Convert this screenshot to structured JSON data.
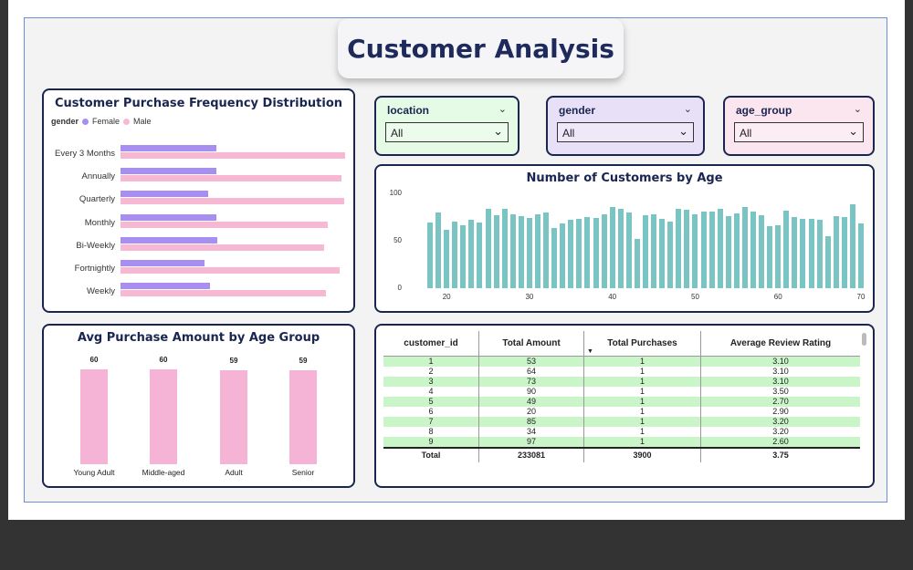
{
  "title": "Customer Analysis",
  "freq_chart": {
    "title": "Customer Purchase Frequency Distribution",
    "legend_title": "gender",
    "legend": [
      {
        "name": "Female",
        "color": "#a88ef0"
      },
      {
        "name": "Male",
        "color": "#f7b8d4"
      }
    ]
  },
  "slicers": [
    {
      "label": "location",
      "value": "All",
      "bg": "#e6fbe6"
    },
    {
      "label": "gender",
      "value": "All",
      "bg": "#e8e0f7"
    },
    {
      "label": "age_group",
      "value": "All",
      "bg": "#fbe6ef"
    }
  ],
  "age_chart": {
    "title": "Number of Customers by Age"
  },
  "avg_chart": {
    "title": "Avg Purchase Amount by Age Group"
  },
  "table": {
    "headers": [
      "customer_id",
      "Total Amount",
      "Total Purchases",
      "Average Review Rating"
    ],
    "rows": [
      [
        "1",
        "53",
        "1",
        "3.10"
      ],
      [
        "2",
        "64",
        "1",
        "3.10"
      ],
      [
        "3",
        "73",
        "1",
        "3.10"
      ],
      [
        "4",
        "90",
        "1",
        "3.50"
      ],
      [
        "5",
        "49",
        "1",
        "2.70"
      ],
      [
        "6",
        "20",
        "1",
        "2.90"
      ],
      [
        "7",
        "85",
        "1",
        "3.20"
      ],
      [
        "8",
        "34",
        "1",
        "3.20"
      ],
      [
        "9",
        "97",
        "1",
        "2.60"
      ]
    ],
    "total": [
      "Total",
      "233081",
      "3900",
      "3.75"
    ]
  },
  "chart_data": [
    {
      "type": "bar",
      "title": "Customer Purchase Frequency Distribution",
      "categories": [
        "Every 3 Months",
        "Annually",
        "Quarterly",
        "Monthly",
        "Bi-Weekly",
        "Fortnightly",
        "Weekly"
      ],
      "series": [
        {
          "name": "Female",
          "values": [
            295,
            295,
            268,
            295,
            297,
            257,
            273
          ]
        },
        {
          "name": "Male",
          "values": [
            689,
            677,
            686,
            636,
            624,
            673,
            630
          ]
        }
      ],
      "xlim": [
        0,
        700
      ]
    },
    {
      "type": "bar",
      "title": "Number of Customers by Age",
      "x": [
        18,
        19,
        20,
        21,
        22,
        23,
        24,
        25,
        26,
        27,
        28,
        29,
        30,
        31,
        32,
        33,
        34,
        35,
        36,
        37,
        38,
        39,
        40,
        41,
        42,
        43,
        44,
        45,
        46,
        47,
        48,
        49,
        50,
        51,
        52,
        53,
        54,
        55,
        56,
        57,
        58,
        59,
        60,
        61,
        62,
        63,
        64,
        65,
        66,
        67,
        68,
        69,
        70
      ],
      "values": [
        69,
        80,
        62,
        70,
        66,
        72,
        69,
        84,
        77,
        84,
        78,
        76,
        74,
        78,
        80,
        63,
        68,
        72,
        73,
        75,
        74,
        78,
        86,
        84,
        80,
        52,
        77,
        78,
        73,
        70,
        84,
        83,
        78,
        81,
        81,
        84,
        76,
        79,
        86,
        81,
        77,
        65,
        66,
        82,
        75,
        73,
        73,
        72,
        55,
        76,
        75,
        88,
        68
      ],
      "ylim": [
        0,
        100
      ],
      "yticks": [
        "0",
        "50",
        "100"
      ],
      "xticks": [
        "20",
        "30",
        "40",
        "50",
        "60",
        "70"
      ]
    },
    {
      "type": "bar",
      "title": "Avg Purchase Amount by Age Group",
      "categories": [
        "Young Adult",
        "Middle-aged",
        "Adult",
        "Senior"
      ],
      "values": [
        60,
        60,
        59,
        59
      ],
      "labels": [
        "60",
        "60",
        "59",
        "59"
      ],
      "ylim": [
        0,
        70
      ]
    }
  ]
}
